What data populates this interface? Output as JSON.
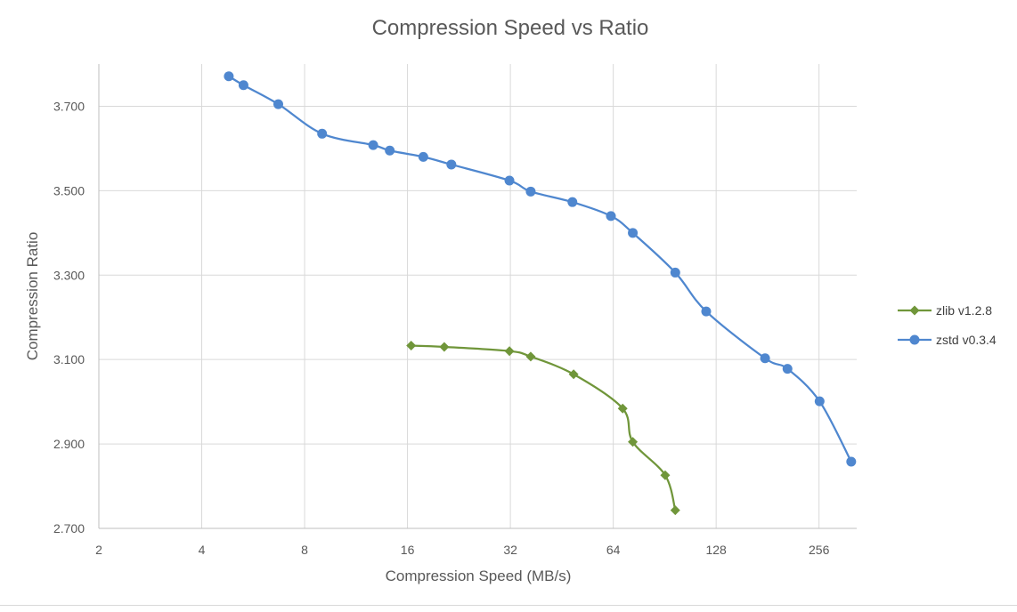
{
  "chart_data": {
    "type": "line",
    "title": "Compression Speed vs Ratio",
    "xlabel": "Compression Speed (MB/s)",
    "ylabel": "Compression Ratio",
    "xscale": "log2",
    "xlim": [
      2,
      330
    ],
    "ylim": [
      2.7,
      3.8
    ],
    "xticks": [
      2,
      4,
      8,
      16,
      32,
      64,
      128,
      256
    ],
    "xtick_labels": [
      "2",
      "4",
      "8",
      "16",
      "32",
      "64",
      "128",
      "256"
    ],
    "yticks": [
      2.7,
      2.9,
      3.1,
      3.3,
      3.5,
      3.7
    ],
    "ytick_labels": [
      "2.700",
      "2.900",
      "3.100",
      "3.300",
      "3.500",
      "3.700"
    ],
    "grid": true,
    "legend_position": "right",
    "series": [
      {
        "name": "zlib v1.2.8",
        "color": "#70963a",
        "marker": "diamond",
        "points": [
          [
            16.4,
            3.133
          ],
          [
            20.5,
            3.13
          ],
          [
            31.8,
            3.12
          ],
          [
            36.7,
            3.107
          ],
          [
            49.0,
            3.065
          ],
          [
            68.2,
            2.984
          ],
          [
            73.0,
            2.905
          ],
          [
            90.8,
            2.826
          ],
          [
            97.2,
            2.743
          ]
        ]
      },
      {
        "name": "zstd v0.3.4",
        "color": "#4f87cf",
        "marker": "circle",
        "points": [
          [
            4.8,
            3.771
          ],
          [
            5.3,
            3.75
          ],
          [
            6.7,
            3.705
          ],
          [
            9.0,
            3.635
          ],
          [
            12.7,
            3.608
          ],
          [
            14.2,
            3.595
          ],
          [
            17.8,
            3.58
          ],
          [
            21.5,
            3.562
          ],
          [
            31.8,
            3.524
          ],
          [
            36.7,
            3.498
          ],
          [
            48.6,
            3.473
          ],
          [
            63.0,
            3.44
          ],
          [
            73.0,
            3.4
          ],
          [
            97.2,
            3.306
          ],
          [
            119.7,
            3.214
          ],
          [
            178.0,
            3.103
          ],
          [
            207.0,
            3.078
          ],
          [
            257.0,
            3.001
          ],
          [
            318.0,
            2.858
          ]
        ]
      }
    ]
  }
}
